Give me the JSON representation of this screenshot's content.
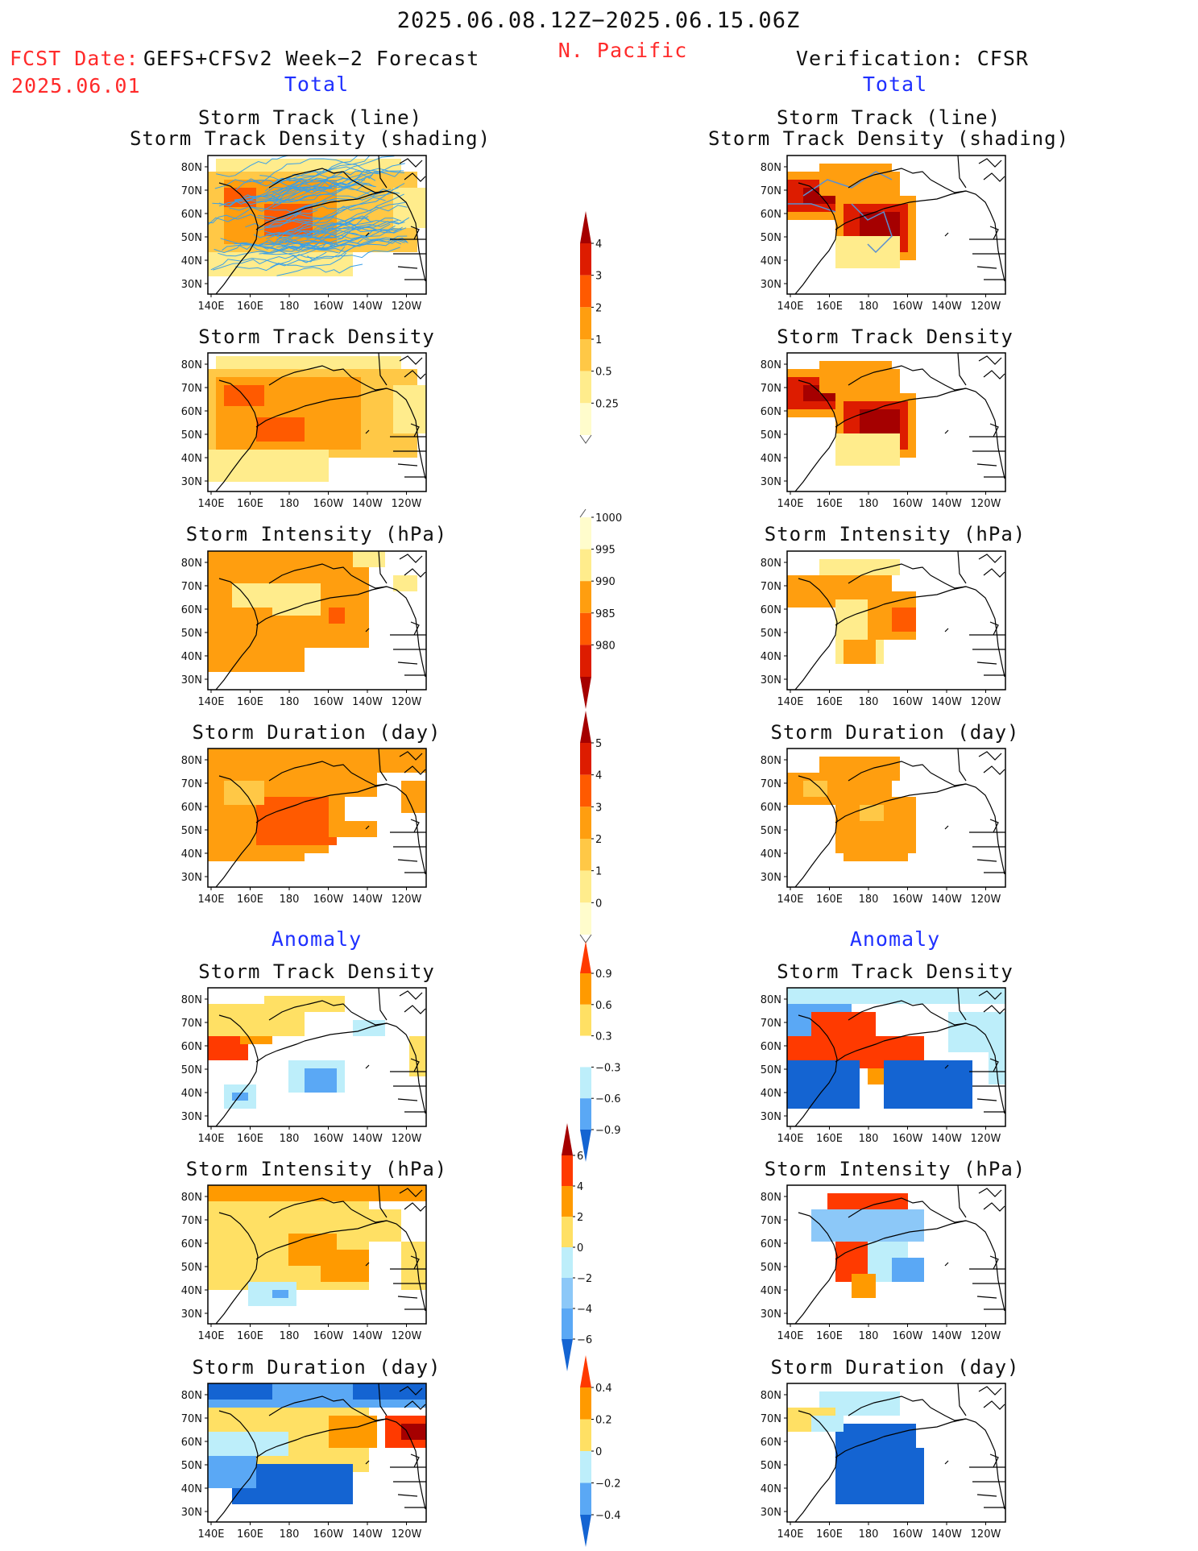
{
  "header": {
    "valid_period": "2025.06.08.12Z−2025.06.15.06Z",
    "region": "N. Pacific",
    "fcst_date_label": "FCST Date:",
    "fcst_date_value": "2025.06.01",
    "forecast_name": "GEFS+CFSv2 Week−2 Forecast",
    "verification": "Verification: CFSR"
  },
  "sections": {
    "total_left": "Total",
    "total_right": "Total",
    "anomaly_left": "Anomaly",
    "anomaly_right": "Anomaly"
  },
  "panels": [
    {
      "id": "fc-track",
      "title1": "Storm Track (line)",
      "title2": "Storm Track Density (shading)"
    },
    {
      "id": "fc-density",
      "title1": "Storm Track Density"
    },
    {
      "id": "fc-intensity",
      "title1": "Storm Intensity (hPa)"
    },
    {
      "id": "fc-duration",
      "title1": "Storm Duration (day)"
    },
    {
      "id": "fc-anom-density",
      "title1": "Storm Track Density"
    },
    {
      "id": "fc-anom-intensity",
      "title1": "Storm Intensity (hPa)"
    },
    {
      "id": "fc-anom-duration",
      "title1": "Storm Duration (day)"
    },
    {
      "id": "vf-track",
      "title1": "Storm Track (line)",
      "title2": "Storm Track Density (shading)"
    },
    {
      "id": "vf-density",
      "title1": "Storm Track Density"
    },
    {
      "id": "vf-intensity",
      "title1": "Storm Intensity (hPa)"
    },
    {
      "id": "vf-duration",
      "title1": "Storm Duration (day)"
    },
    {
      "id": "vf-anom-density",
      "title1": "Storm Track Density"
    },
    {
      "id": "vf-anom-intensity",
      "title1": "Storm Intensity (hPa)"
    },
    {
      "id": "vf-anom-duration",
      "title1": "Storm Duration (day)"
    }
  ],
  "axes": {
    "lat_labels": [
      "80N",
      "70N",
      "60N",
      "50N",
      "40N",
      "30N"
    ],
    "lon_labels": [
      "140E",
      "160E",
      "180",
      "160W",
      "140W",
      "120W"
    ]
  },
  "colorbars": [
    {
      "id": "cb-density",
      "labels": [
        "4",
        "3",
        "2",
        "1",
        "0.5",
        "0.25"
      ],
      "colors": [
        "#a50000",
        "#dd1c00",
        "#ff5a00",
        "#ff9e0f",
        "#ffc846",
        "#ffec8c",
        "#fffccc"
      ]
    },
    {
      "id": "cb-intensity",
      "labels": [
        "1000",
        "995",
        "990",
        "985",
        "980"
      ],
      "colors": [
        "#fffccc",
        "#ffec8c",
        "#ff9e0f",
        "#ff5a00",
        "#dd1c00",
        "#a50000"
      ]
    },
    {
      "id": "cb-duration",
      "labels": [
        "5",
        "4",
        "3",
        "2",
        "1",
        "0"
      ],
      "colors": [
        "#a50000",
        "#dd1c00",
        "#ff5a00",
        "#ff9e0f",
        "#ffc846",
        "#ffec8c",
        "#fffccc"
      ]
    },
    {
      "id": "cb-anom-density",
      "labels": [
        "0.9",
        "0.6",
        "0.3",
        "−0.3",
        "−0.6",
        "−0.9"
      ],
      "colors": [
        "#ff3a00",
        "#ff9a00",
        "#ffe064",
        "#ffffff",
        "#bdeefa",
        "#5aa8f5",
        "#1464d2"
      ]
    },
    {
      "id": "cb-anom-intensity",
      "labels": [
        "6",
        "4",
        "2",
        "0",
        "−2",
        "−4",
        "−6"
      ],
      "colors": [
        "#a50000",
        "#ff3a00",
        "#ff9a00",
        "#ffe064",
        "#bdeefa",
        "#8cc8f8",
        "#5aa8f5",
        "#1464d2"
      ]
    },
    {
      "id": "cb-anom-duration",
      "labels": [
        "0.4",
        "0.2",
        "0",
        "−0.2",
        "−0.4"
      ],
      "colors": [
        "#ff3a00",
        "#ff9a00",
        "#ffe064",
        "#bdeefa",
        "#5aa8f5",
        "#1464d2"
      ]
    }
  ]
}
